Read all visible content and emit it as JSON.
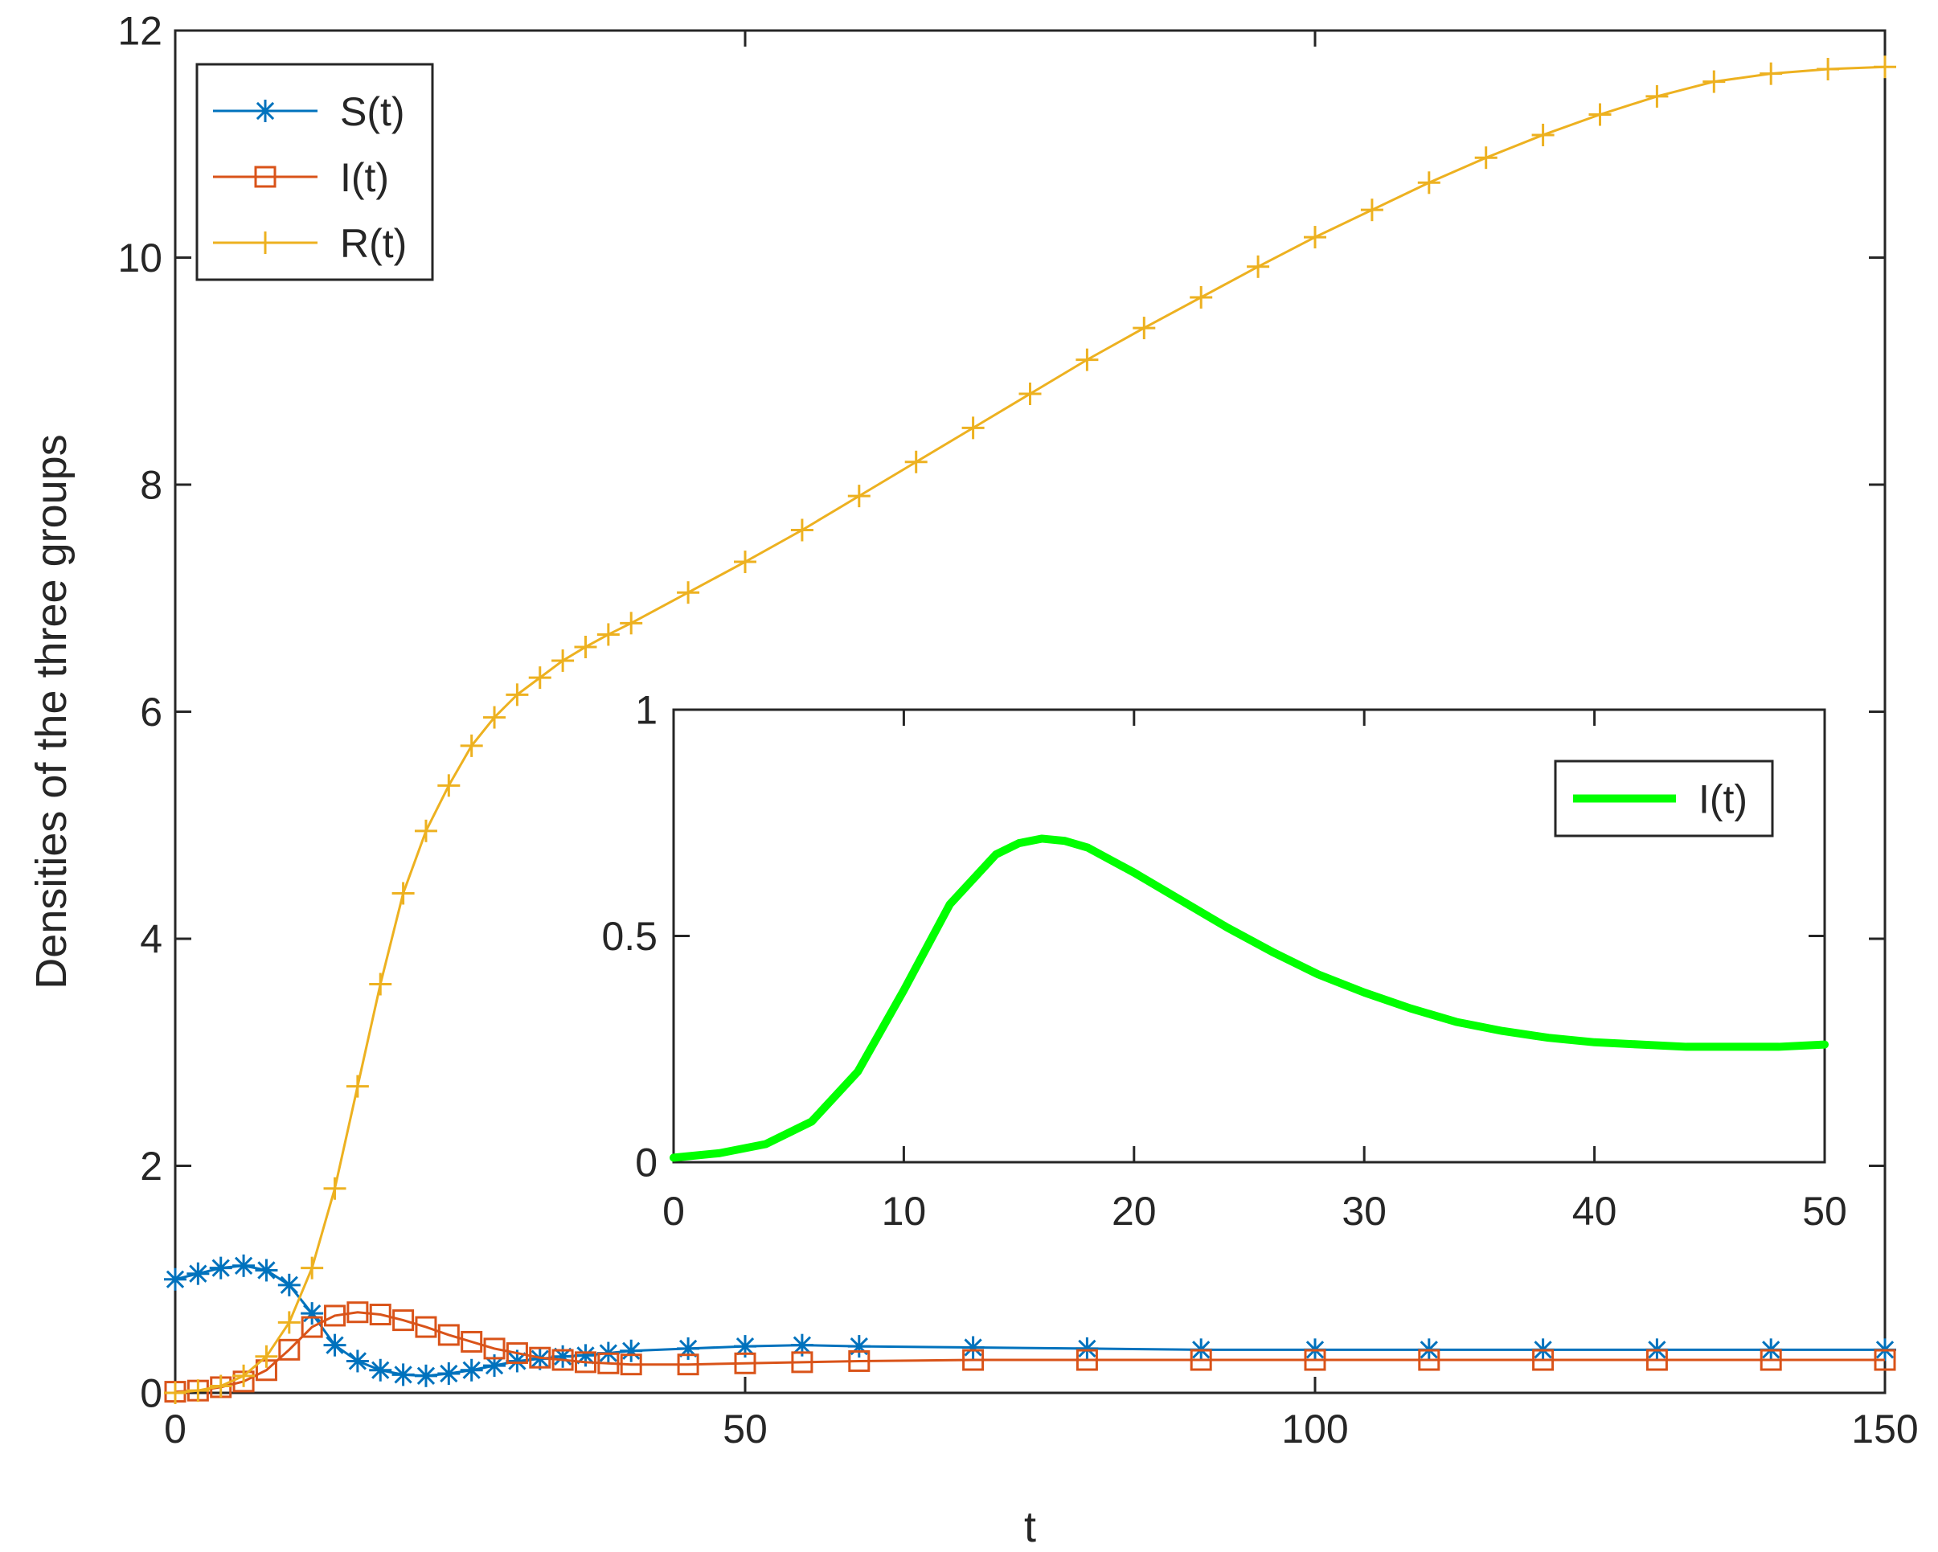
{
  "chart_data": [
    {
      "type": "line",
      "xlabel": "t",
      "ylabel": "Densities of the three groups",
      "xlim": [
        0,
        150
      ],
      "ylim": [
        0,
        12
      ],
      "xticks": [
        0,
        50,
        100,
        150
      ],
      "yticks": [
        0,
        2,
        4,
        6,
        8,
        10,
        12
      ],
      "grid": false,
      "legend_position": "top-left",
      "series": [
        {
          "name": "S(t)",
          "color": "#0072BD",
          "marker": "asterisk",
          "x": [
            0,
            2,
            4,
            6,
            8,
            10,
            12,
            14,
            16,
            18,
            20,
            22,
            24,
            26,
            28,
            30,
            32,
            34,
            36,
            38,
            40,
            45,
            50,
            55,
            60,
            70,
            80,
            90,
            100,
            110,
            120,
            130,
            140,
            150
          ],
          "values": [
            1.0,
            1.05,
            1.1,
            1.12,
            1.08,
            0.95,
            0.7,
            0.42,
            0.28,
            0.2,
            0.16,
            0.15,
            0.17,
            0.2,
            0.24,
            0.28,
            0.3,
            0.32,
            0.33,
            0.35,
            0.37,
            0.39,
            0.41,
            0.42,
            0.41,
            0.4,
            0.39,
            0.38,
            0.38,
            0.38,
            0.38,
            0.38,
            0.38,
            0.38
          ]
        },
        {
          "name": "I(t)",
          "color": "#D95319",
          "marker": "square",
          "x": [
            0,
            2,
            4,
            6,
            8,
            10,
            12,
            14,
            16,
            18,
            20,
            22,
            24,
            26,
            28,
            30,
            32,
            34,
            36,
            38,
            40,
            45,
            50,
            55,
            60,
            70,
            80,
            90,
            100,
            110,
            120,
            130,
            140,
            150
          ],
          "values": [
            0.01,
            0.02,
            0.05,
            0.1,
            0.2,
            0.38,
            0.58,
            0.68,
            0.71,
            0.69,
            0.64,
            0.58,
            0.51,
            0.45,
            0.39,
            0.35,
            0.31,
            0.29,
            0.27,
            0.26,
            0.25,
            0.25,
            0.26,
            0.27,
            0.28,
            0.29,
            0.29,
            0.29,
            0.29,
            0.29,
            0.29,
            0.29,
            0.29,
            0.29
          ]
        },
        {
          "name": "R(t)",
          "color": "#EDB120",
          "marker": "plus",
          "x": [
            0,
            2,
            4,
            6,
            8,
            10,
            12,
            14,
            16,
            18,
            20,
            22,
            24,
            26,
            28,
            30,
            32,
            34,
            36,
            38,
            40,
            45,
            50,
            55,
            60,
            65,
            70,
            75,
            80,
            85,
            90,
            95,
            100,
            105,
            110,
            115,
            120,
            125,
            130,
            135,
            140,
            145,
            150
          ],
          "values": [
            0.0,
            0.02,
            0.06,
            0.15,
            0.32,
            0.62,
            1.1,
            1.8,
            2.7,
            3.6,
            4.4,
            4.95,
            5.35,
            5.7,
            5.95,
            6.15,
            6.3,
            6.45,
            6.57,
            6.68,
            6.78,
            7.05,
            7.32,
            7.6,
            7.9,
            8.2,
            8.5,
            8.8,
            9.1,
            9.38,
            9.65,
            9.92,
            10.18,
            10.42,
            10.66,
            10.88,
            11.08,
            11.26,
            11.42,
            11.55,
            11.62,
            11.66,
            11.68
          ]
        }
      ]
    },
    {
      "type": "line",
      "inset": true,
      "xlabel": "",
      "ylabel": "",
      "xlim": [
        0,
        50
      ],
      "ylim": [
        0,
        1
      ],
      "xticks": [
        0,
        10,
        20,
        30,
        40,
        50
      ],
      "yticks": [
        0,
        0.5,
        1
      ],
      "grid": false,
      "legend_position": "top-right",
      "series": [
        {
          "name": "I(t)",
          "color": "#00FF00",
          "x": [
            0,
            2,
            4,
            6,
            8,
            10,
            12,
            14,
            15,
            16,
            17,
            18,
            20,
            22,
            24,
            26,
            28,
            30,
            32,
            34,
            36,
            38,
            40,
            42,
            44,
            46,
            48,
            50
          ],
          "values": [
            0.01,
            0.02,
            0.04,
            0.09,
            0.2,
            0.38,
            0.57,
            0.68,
            0.705,
            0.715,
            0.71,
            0.695,
            0.64,
            0.58,
            0.52,
            0.465,
            0.415,
            0.375,
            0.34,
            0.31,
            0.29,
            0.275,
            0.265,
            0.26,
            0.255,
            0.255,
            0.255,
            0.26
          ]
        }
      ]
    }
  ]
}
